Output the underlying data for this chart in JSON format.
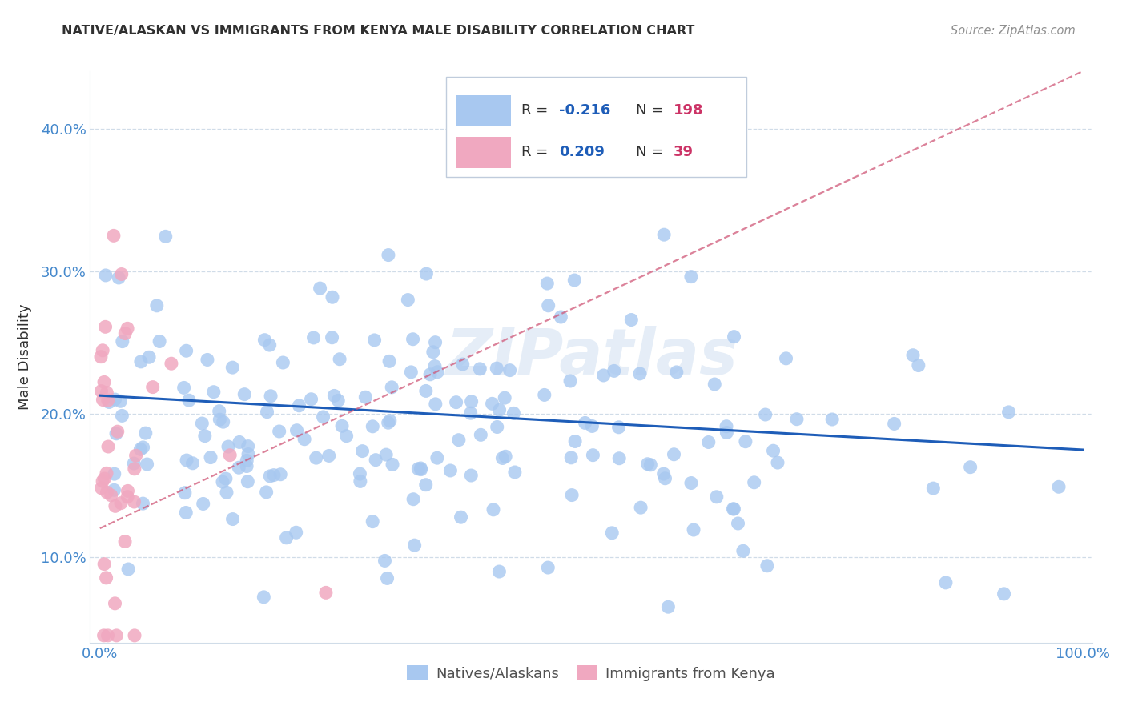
{
  "title": "NATIVE/ALASKAN VS IMMIGRANTS FROM KENYA MALE DISABILITY CORRELATION CHART",
  "source": "Source: ZipAtlas.com",
  "ylabel": "Male Disability",
  "ytick_labels": [
    "10.0%",
    "20.0%",
    "30.0%",
    "40.0%"
  ],
  "ytick_values": [
    0.1,
    0.2,
    0.3,
    0.4
  ],
  "xtick_labels": [
    "0.0%",
    "",
    "",
    "",
    "",
    "",
    "",
    "",
    "",
    "",
    "100.0%"
  ],
  "xtick_values": [
    0.0,
    0.1,
    0.2,
    0.3,
    0.4,
    0.5,
    0.6,
    0.7,
    0.8,
    0.9,
    1.0
  ],
  "xlim": [
    -0.01,
    1.01
  ],
  "ylim": [
    0.04,
    0.44
  ],
  "legend_r1_prefix": "R = ",
  "legend_r1_value": "-0.216",
  "legend_n1_prefix": "N = ",
  "legend_n1_value": "198",
  "legend_r2_prefix": "R =  ",
  "legend_r2_value": "0.209",
  "legend_n2_prefix": "N =  ",
  "legend_n2_value": "39",
  "blue_scatter_color": "#a8c8f0",
  "pink_scatter_color": "#f0a8c0",
  "blue_line_color": "#1e5db8",
  "pink_line_color": "#d05878",
  "watermark_color": "#ccddf0",
  "watermark_alpha": 0.5,
  "background_color": "#ffffff",
  "grid_color": "#d0dce8",
  "title_color": "#303030",
  "source_color": "#909090",
  "ylabel_color": "#303030",
  "axis_tick_color": "#4488cc",
  "legend_r_color": "#1e5db8",
  "legend_n_color": "#cc3366",
  "legend_border_color": "#c0ccdc",
  "bottom_legend_text_color": "#505050",
  "seed": 7,
  "native_N": 198,
  "kenya_N": 39,
  "native_R": -0.216,
  "kenya_R": 0.209,
  "blue_line_y0": 0.213,
  "blue_line_y1": 0.175,
  "pink_line_y0": 0.12,
  "pink_line_y1": 0.44,
  "scatter_size": 150
}
